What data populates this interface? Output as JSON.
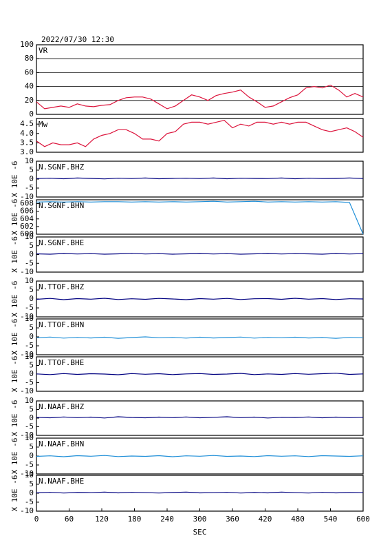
{
  "title": "2022/07/30 12:30",
  "chart_data": [
    {
      "type": "line",
      "title": "VR",
      "color": "#dc143c",
      "grid": true,
      "xlim": [
        0,
        600
      ],
      "ylim": [
        0,
        100
      ],
      "yticks": [
        0,
        20,
        40,
        60,
        80,
        100
      ],
      "x": [
        0,
        15,
        30,
        45,
        60,
        75,
        90,
        105,
        120,
        135,
        150,
        165,
        180,
        195,
        210,
        225,
        240,
        255,
        270,
        285,
        300,
        315,
        330,
        345,
        360,
        375,
        390,
        405,
        420,
        435,
        450,
        465,
        480,
        495,
        510,
        525,
        540,
        555,
        570,
        585,
        600
      ],
      "values": [
        18,
        8,
        10,
        12,
        10,
        15,
        12,
        11,
        13,
        14,
        20,
        24,
        25,
        25,
        22,
        15,
        8,
        12,
        20,
        28,
        25,
        20,
        27,
        30,
        32,
        35,
        25,
        18,
        10,
        12,
        18,
        24,
        28,
        38,
        40,
        38,
        42,
        35,
        25,
        30,
        25
      ]
    },
    {
      "type": "line",
      "title": "Mw",
      "color": "#dc143c",
      "xlim": [
        0,
        600
      ],
      "ylim": [
        3.0,
        4.8
      ],
      "yticks": [
        {
          "value": 3,
          "label": "3.0"
        },
        3.5,
        {
          "value": 4,
          "label": "4.0"
        },
        4.5
      ],
      "x": [
        0,
        15,
        30,
        45,
        60,
        75,
        90,
        105,
        120,
        135,
        150,
        165,
        180,
        195,
        210,
        225,
        240,
        255,
        270,
        285,
        300,
        315,
        330,
        345,
        360,
        375,
        390,
        405,
        420,
        435,
        450,
        465,
        480,
        495,
        510,
        525,
        540,
        555,
        570,
        585,
        600
      ],
      "values": [
        3.6,
        3.3,
        3.5,
        3.4,
        3.4,
        3.5,
        3.3,
        3.7,
        3.9,
        4.0,
        4.2,
        4.2,
        4.0,
        3.7,
        3.7,
        3.6,
        4.0,
        4.1,
        4.5,
        4.6,
        4.6,
        4.5,
        4.6,
        4.7,
        4.3,
        4.5,
        4.4,
        4.6,
        4.6,
        4.5,
        4.6,
        4.5,
        4.6,
        4.6,
        4.4,
        4.2,
        4.1,
        4.2,
        4.3,
        4.1,
        3.8
      ]
    },
    {
      "type": "line",
      "title": "N.SGNF.BHZ",
      "ylabel": "X 10E -6",
      "color": "#000080",
      "xlim": [
        0,
        600
      ],
      "ylim": [
        -10,
        10
      ],
      "yticks": [
        -10,
        -5,
        0,
        5,
        10
      ],
      "x": [
        0,
        25,
        50,
        75,
        100,
        125,
        150,
        175,
        200,
        225,
        250,
        275,
        300,
        325,
        350,
        375,
        400,
        425,
        450,
        475,
        500,
        525,
        550,
        575,
        600
      ],
      "values": [
        0.3,
        0.5,
        0.2,
        0.6,
        0.4,
        0.1,
        0.5,
        0.3,
        0.6,
        0.2,
        0.4,
        0.5,
        0.3,
        0.6,
        0.2,
        0.5,
        0.4,
        0.3,
        0.6,
        0.2,
        0.5,
        0.3,
        0.4,
        0.6,
        0.3
      ]
    },
    {
      "type": "line",
      "title": "N.SGNF.BHN",
      "ylabel": "X 10E -6",
      "color": "#1f8fd8",
      "xlim": [
        0,
        600
      ],
      "ylim": [
        600,
        609
      ],
      "yticks": [
        600,
        602,
        604,
        606,
        608
      ],
      "x": [
        0,
        25,
        50,
        75,
        100,
        125,
        150,
        175,
        200,
        225,
        250,
        275,
        300,
        325,
        350,
        375,
        400,
        425,
        450,
        475,
        500,
        525,
        550,
        575,
        600
      ],
      "values": [
        608.4,
        608.5,
        608.4,
        608.5,
        608.4,
        608.5,
        608.5,
        608.4,
        608.5,
        608.4,
        608.5,
        608.4,
        608.5,
        608.6,
        608.4,
        608.5,
        608.6,
        608.4,
        608.5,
        608.4,
        608.5,
        608.4,
        608.5,
        608.3,
        600
      ]
    },
    {
      "type": "line",
      "title": "N.SGNF.BHE",
      "ylabel": "X 10E -6",
      "color": "#000080",
      "xlim": [
        0,
        600
      ],
      "ylim": [
        -10,
        10
      ],
      "yticks": [
        -10,
        -5,
        0,
        5,
        10
      ],
      "x": [
        0,
        25,
        50,
        75,
        100,
        125,
        150,
        175,
        200,
        225,
        250,
        275,
        300,
        325,
        350,
        375,
        400,
        425,
        450,
        475,
        500,
        525,
        550,
        575,
        600
      ],
      "values": [
        0.4,
        0.2,
        0.6,
        0.3,
        0.5,
        0.2,
        0.4,
        0.7,
        0.3,
        0.5,
        0.2,
        0.4,
        0.6,
        0.3,
        0.5,
        0.2,
        0.4,
        0.6,
        0.3,
        0.5,
        0.4,
        0.2,
        0.6,
        0.3,
        0.5
      ]
    },
    {
      "type": "line",
      "title": "N.TTOF.BHZ",
      "ylabel": "X 10E -6",
      "color": "#000080",
      "xlim": [
        0,
        600
      ],
      "ylim": [
        -10,
        10
      ],
      "yticks": [
        -10,
        -5,
        0,
        5,
        10
      ],
      "x": [
        0,
        25,
        50,
        75,
        100,
        125,
        150,
        175,
        200,
        225,
        250,
        275,
        300,
        325,
        350,
        375,
        400,
        425,
        450,
        475,
        500,
        525,
        550,
        575,
        600
      ],
      "values": [
        -0.2,
        0.3,
        -0.4,
        0.2,
        -0.1,
        0.4,
        -0.3,
        0.1,
        -0.2,
        0.3,
        0,
        -0.4,
        0.2,
        -0.1,
        0.3,
        -0.3,
        0.1,
        0.2,
        -0.2,
        0.4,
        -0.1,
        0.2,
        -0.3,
        0.1,
        0
      ]
    },
    {
      "type": "line",
      "title": "N.TTOF.BHN",
      "ylabel": "X 10E -6",
      "color": "#1f8fd8",
      "xlim": [
        0,
        600
      ],
      "ylim": [
        -10,
        10
      ],
      "yticks": [
        -10,
        -5,
        0,
        5,
        10
      ],
      "x": [
        0,
        25,
        50,
        75,
        100,
        125,
        150,
        175,
        200,
        225,
        250,
        275,
        300,
        325,
        350,
        375,
        400,
        425,
        450,
        475,
        500,
        525,
        550,
        575,
        600
      ],
      "values": [
        -0.5,
        -0.1,
        -0.7,
        -0.3,
        -0.6,
        -0.2,
        -0.8,
        -0.4,
        0,
        -0.5,
        -0.3,
        -0.7,
        -0.2,
        -0.6,
        -0.4,
        -0.1,
        -0.7,
        -0.3,
        -0.5,
        -0.2,
        -0.6,
        -0.4,
        -0.8,
        -0.3,
        -0.5
      ]
    },
    {
      "type": "line",
      "title": "N.TTOF.BHE",
      "ylabel": "X 10E -6",
      "color": "#000080",
      "xlim": [
        0,
        600
      ],
      "ylim": [
        -10,
        10
      ],
      "yticks": [
        -10,
        -5,
        0,
        5,
        10
      ],
      "x": [
        0,
        25,
        50,
        75,
        100,
        125,
        150,
        175,
        200,
        225,
        250,
        275,
        300,
        325,
        350,
        375,
        400,
        425,
        450,
        475,
        500,
        525,
        550,
        575,
        600
      ],
      "values": [
        0.1,
        -0.3,
        0.3,
        -0.2,
        0.2,
        0,
        -0.4,
        0.3,
        -0.1,
        0.2,
        -0.3,
        0.1,
        0.3,
        -0.2,
        0,
        0.4,
        -0.3,
        0.1,
        -0.2,
        0.3,
        -0.1,
        0.2,
        0.5,
        -0.2,
        0.1
      ]
    },
    {
      "type": "line",
      "title": "N.NAAF.BHZ",
      "ylabel": "X 10E -6",
      "color": "#000080",
      "xlim": [
        0,
        600
      ],
      "ylim": [
        -10,
        10
      ],
      "yticks": [
        -10,
        -5,
        0,
        5,
        10
      ],
      "x": [
        0,
        25,
        50,
        75,
        100,
        125,
        150,
        175,
        200,
        225,
        250,
        275,
        300,
        325,
        350,
        375,
        400,
        425,
        450,
        475,
        500,
        525,
        550,
        575,
        600
      ],
      "values": [
        0.5,
        0.2,
        0.7,
        0.3,
        0.6,
        0.1,
        0.8,
        0.4,
        0.2,
        0.6,
        0.3,
        0.7,
        0.2,
        0.5,
        0.8,
        0.3,
        0.6,
        0.1,
        0.5,
        0.4,
        0.7,
        0.2,
        0.6,
        0.3,
        0.5
      ]
    },
    {
      "type": "line",
      "title": "N.NAAF.BHN",
      "ylabel": "X 10E -6",
      "color": "#1f8fd8",
      "xlim": [
        0,
        600
      ],
      "ylim": [
        -10,
        10
      ],
      "yticks": [
        -10,
        -5,
        0,
        5,
        10
      ],
      "x": [
        0,
        25,
        50,
        75,
        100,
        125,
        150,
        175,
        200,
        225,
        250,
        275,
        300,
        325,
        350,
        375,
        400,
        425,
        450,
        475,
        500,
        525,
        550,
        575,
        600
      ],
      "values": [
        -0.2,
        0.1,
        -0.4,
        0.2,
        -0.1,
        0.3,
        -0.3,
        0,
        -0.2,
        0.2,
        -0.4,
        0.1,
        -0.1,
        0.3,
        -0.2,
        0,
        -0.3,
        0.2,
        -0.1,
        0.1,
        -0.3,
        0.2,
        0,
        -0.2,
        0.1
      ]
    },
    {
      "type": "line",
      "title": "N.NAAF.BHE",
      "ylabel": "X 10E -6",
      "xlabel": "SEC",
      "color": "#000080",
      "xlim": [
        0,
        600
      ],
      "ylim": [
        -10,
        10
      ],
      "yticks": [
        -10,
        -5,
        0,
        5,
        10
      ],
      "xticks": [
        0,
        60,
        120,
        180,
        240,
        300,
        360,
        420,
        480,
        540,
        600
      ],
      "x": [
        0,
        25,
        50,
        75,
        100,
        125,
        150,
        175,
        200,
        225,
        250,
        275,
        300,
        325,
        350,
        375,
        400,
        425,
        450,
        475,
        500,
        525,
        550,
        575,
        600
      ],
      "values": [
        0.2,
        0.5,
        0.1,
        0.4,
        0.3,
        0.6,
        0.2,
        0.5,
        0.3,
        0.1,
        0.4,
        0.6,
        0.2,
        0.3,
        0.5,
        0.1,
        0.4,
        0.2,
        0.6,
        0.3,
        0.1,
        0.5,
        0.2,
        0.4,
        0.3
      ]
    }
  ]
}
